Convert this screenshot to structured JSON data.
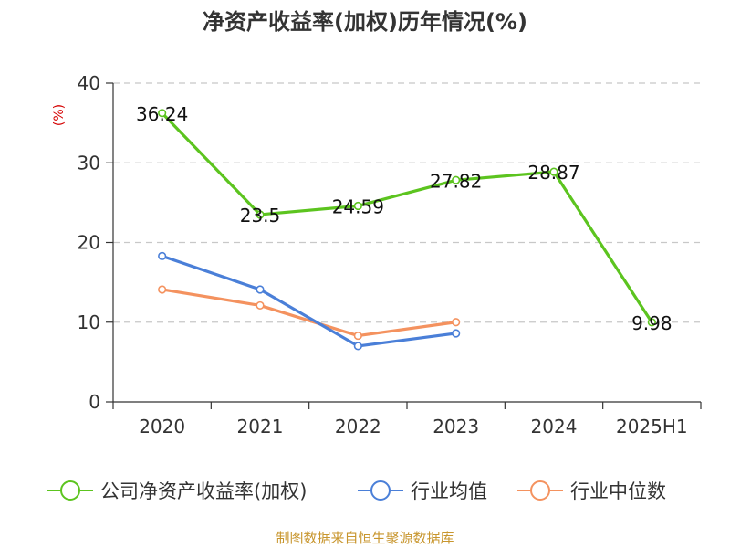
{
  "chart_data": {
    "type": "line",
    "title": "净资产收益率(加权)历年情况(%)",
    "ylabel": "(%)",
    "xlabel": "",
    "categories": [
      "2020",
      "2021",
      "2022",
      "2023",
      "2024",
      "2025H1"
    ],
    "yticks": [
      "0",
      "10",
      "20",
      "30",
      "40"
    ],
    "ylim": [
      0,
      40
    ],
    "grid": true,
    "legend_position": "bottom",
    "series": [
      {
        "name": "公司净资产收益率(加权)",
        "color": "#5cc41f",
        "values": [
          36.24,
          23.5,
          24.59,
          27.82,
          28.87,
          9.98
        ],
        "labels": [
          "36.24",
          "23.5",
          "24.59",
          "27.82",
          "28.87",
          "9.98"
        ]
      },
      {
        "name": "行业均值",
        "color": "#4a7fd8",
        "values": [
          18.3,
          14.1,
          7.0,
          8.6,
          null,
          null
        ]
      },
      {
        "name": "行业中位数",
        "color": "#f4925f",
        "values": [
          14.1,
          12.1,
          8.3,
          10.0,
          null,
          null
        ]
      }
    ],
    "source": "制图数据来自恒生聚源数据库"
  }
}
